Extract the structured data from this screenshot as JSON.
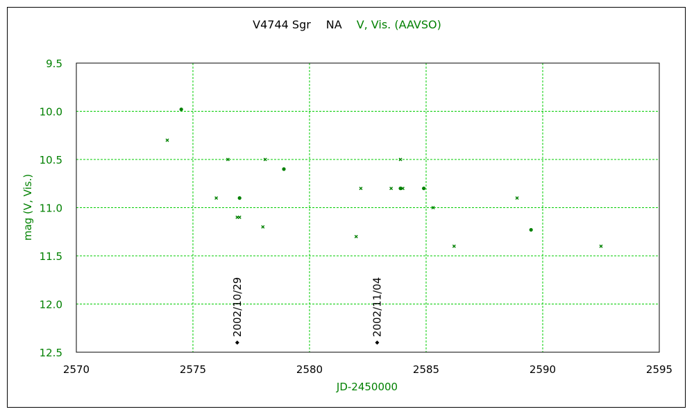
{
  "chart_data": {
    "type": "scatter",
    "title_parts": [
      {
        "text": "V4744 Sgr",
        "color": "#000000"
      },
      {
        "text": "NA",
        "color": "#000000"
      },
      {
        "text": "V, Vis. (AAVSO)",
        "color": "#008000"
      }
    ],
    "xlabel": "JD-2450000",
    "ylabel": "mag (V, Vis.)",
    "xlim": [
      2570,
      2595
    ],
    "ylim": [
      12.5,
      9.5
    ],
    "y_inverted": true,
    "grid": true,
    "x_ticks": [
      {
        "value": 2570,
        "label": "2570"
      },
      {
        "value": 2575,
        "label": "2575"
      },
      {
        "value": 2580,
        "label": "2580"
      },
      {
        "value": 2585,
        "label": "2585"
      },
      {
        "value": 2590,
        "label": "2590"
      },
      {
        "value": 2595,
        "label": "2595"
      }
    ],
    "y_ticks": [
      {
        "value": 9.5,
        "label": "9.5"
      },
      {
        "value": 10.0,
        "label": "10.0"
      },
      {
        "value": 10.5,
        "label": "10.5"
      },
      {
        "value": 11.0,
        "label": "11.0"
      },
      {
        "value": 11.5,
        "label": "11.5"
      },
      {
        "value": 12.0,
        "label": "12.0"
      },
      {
        "value": 12.5,
        "label": "12.5"
      }
    ],
    "colors": {
      "series": "#008000",
      "grid": "#00cc00",
      "axis": "#000000",
      "marker": "#000000"
    },
    "series": [
      {
        "points": [
          {
            "x": 2573.9,
            "y": 10.3,
            "m": "x"
          },
          {
            "x": 2574.5,
            "y": 9.98,
            "m": "dot"
          },
          {
            "x": 2576.0,
            "y": 10.9,
            "m": "x"
          },
          {
            "x": 2576.5,
            "y": 10.5,
            "m": "x"
          },
          {
            "x": 2576.9,
            "y": 11.1,
            "m": "x"
          },
          {
            "x": 2577.0,
            "y": 11.1,
            "m": "x"
          },
          {
            "x": 2577.0,
            "y": 10.9,
            "m": "dot"
          },
          {
            "x": 2578.0,
            "y": 11.2,
            "m": "x"
          },
          {
            "x": 2578.1,
            "y": 10.5,
            "m": "x"
          },
          {
            "x": 2578.9,
            "y": 10.6,
            "m": "dot"
          },
          {
            "x": 2582.0,
            "y": 11.3,
            "m": "x"
          },
          {
            "x": 2582.2,
            "y": 10.8,
            "m": "x"
          },
          {
            "x": 2583.5,
            "y": 10.8,
            "m": "x"
          },
          {
            "x": 2583.9,
            "y": 10.5,
            "m": "x"
          },
          {
            "x": 2583.9,
            "y": 10.8,
            "m": "dot"
          },
          {
            "x": 2584.0,
            "y": 10.8,
            "m": "x"
          },
          {
            "x": 2584.9,
            "y": 10.8,
            "m": "dot"
          },
          {
            "x": 2585.3,
            "y": 11.0,
            "m": "x"
          },
          {
            "x": 2586.2,
            "y": 11.4,
            "m": "x"
          },
          {
            "x": 2588.9,
            "y": 10.9,
            "m": "x"
          },
          {
            "x": 2589.5,
            "y": 11.23,
            "m": "dot"
          },
          {
            "x": 2592.5,
            "y": 11.4,
            "m": "x"
          }
        ]
      }
    ],
    "annotations": [
      {
        "x": 2576.9,
        "y": 12.4,
        "text": "2002/10/29"
      },
      {
        "x": 2582.9,
        "y": 12.4,
        "text": "2002/11/04"
      }
    ]
  }
}
